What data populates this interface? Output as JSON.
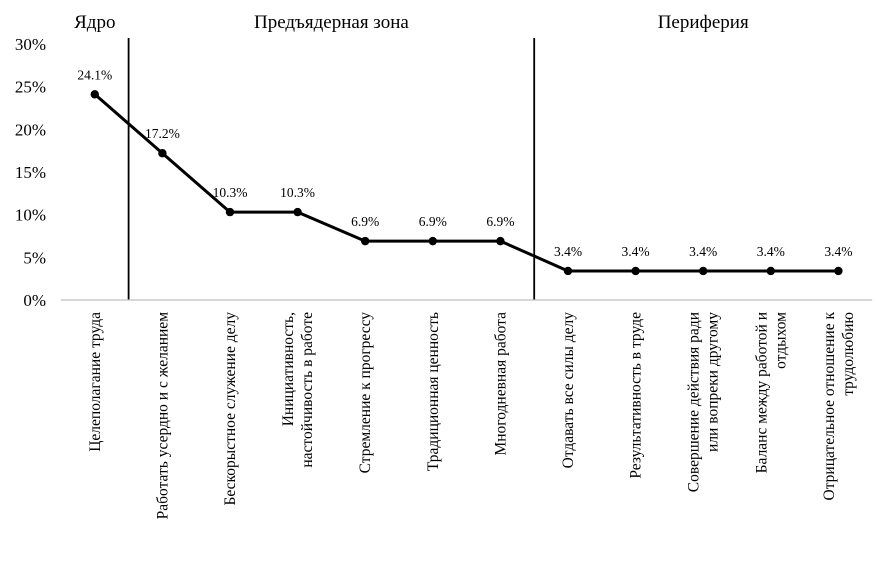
{
  "chart_data": {
    "type": "line",
    "categories": [
      [
        "Целеполагание труда"
      ],
      [
        "Работать усердно и с желанием"
      ],
      [
        "Бескорыстное служение делу"
      ],
      [
        "Инициативность,",
        "настойчивость в работе"
      ],
      [
        "Стремление к прогрессу"
      ],
      [
        "Традиционная ценность"
      ],
      [
        "Многодневная работа"
      ],
      [
        "Отдавать все силы делу"
      ],
      [
        "Результативность в труде"
      ],
      [
        "Совершение действия ради",
        "или вопреки другому"
      ],
      [
        "Баланс между работой и",
        "отдыхом"
      ],
      [
        "Отрицательное отношение к",
        "трудолюбию"
      ]
    ],
    "values": [
      24.1,
      17.2,
      10.3,
      10.3,
      6.9,
      6.9,
      6.9,
      3.4,
      3.4,
      3.4,
      3.4,
      3.4
    ],
    "data_labels": [
      "24.1%",
      "17.2%",
      "10.3%",
      "10.3%",
      "6.9%",
      "6.9%",
      "6.9%",
      "3.4%",
      "3.4%",
      "3.4%",
      "3.4%",
      "3.4%"
    ],
    "y_ticks": [
      {
        "value": 0,
        "label": "0%"
      },
      {
        "value": 5,
        "label": "5%"
      },
      {
        "value": 10,
        "label": "10%"
      },
      {
        "value": 15,
        "label": "15%"
      },
      {
        "value": 20,
        "label": "20%"
      },
      {
        "value": 25,
        "label": "25%"
      },
      {
        "value": 30,
        "label": "30%"
      }
    ],
    "ylim": [
      0,
      30
    ],
    "grid": false,
    "zones": [
      {
        "label": "Ядро",
        "from": 0,
        "to": 0
      },
      {
        "label": "Предъядерная зона",
        "from": 1,
        "to": 6
      },
      {
        "label": "Периферия",
        "from": 7,
        "to": 11
      }
    ],
    "line_color": "#000000"
  }
}
